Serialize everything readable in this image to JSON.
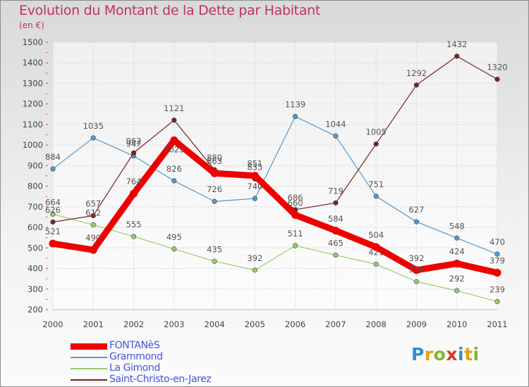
{
  "header": {
    "title": "Evolution du Montant de la Dette par Habitant",
    "subtitle": "(en €)"
  },
  "logo": {
    "letters": [
      {
        "ch": "P",
        "color": "#2c8fd6"
      },
      {
        "ch": "r",
        "color": "#e8a010"
      },
      {
        "ch": "o",
        "color": "#7cb82f"
      },
      {
        "ch": "x",
        "color": "#d93a2b"
      },
      {
        "ch": "i",
        "color": "#2c8fd6"
      },
      {
        "ch": "t",
        "color": "#e8a010"
      },
      {
        "ch": "i",
        "color": "#7cb82f"
      }
    ]
  },
  "chart_data": {
    "type": "line",
    "x": [
      "2000",
      "2001",
      "2002",
      "2003",
      "2004",
      "2005",
      "2006",
      "2007",
      "2008",
      "2009",
      "2010",
      "2011"
    ],
    "ylim": [
      200,
      1500
    ],
    "yticks": [
      200,
      300,
      400,
      500,
      600,
      700,
      800,
      900,
      1000,
      1100,
      1200,
      1300,
      1400,
      1500
    ],
    "grid": true,
    "legend_position": "bottom-left",
    "series": [
      {
        "name": "FONTANèS",
        "color": "#ee0000",
        "values": [
          521,
          490,
          764,
          1023,
          863,
          851,
          660,
          584,
          504,
          392,
          424,
          379
        ]
      },
      {
        "name": "Grammond",
        "color": "#5599cc",
        "values": [
          884,
          1035,
          947,
          826,
          726,
          740,
          1139,
          1044,
          751,
          627,
          548,
          470
        ]
      },
      {
        "name": "La Gimond",
        "color": "#99cc66",
        "values": [
          664,
          612,
          555,
          495,
          435,
          392,
          511,
          465,
          421,
          336,
          292,
          239
        ]
      },
      {
        "name": "Saint-Christo-en-Jarez",
        "color": "#772222",
        "values": [
          626,
          657,
          962,
          1121,
          880,
          835,
          686,
          719,
          1005,
          1292,
          1432,
          1320
        ]
      }
    ],
    "labels": [
      [
        {
          "t": "521",
          "dx": 0,
          "dy": -13
        },
        {
          "t": "490",
          "dx": 0,
          "dy": -13
        },
        {
          "t": "764",
          "dx": 0,
          "dy": -13
        },
        {
          "t": "1023",
          "dx": 0,
          "dy": 17
        },
        {
          "t": "863",
          "dx": 0,
          "dy": -13
        },
        {
          "t": "851",
          "dx": 0,
          "dy": -13
        },
        {
          "t": "660",
          "dx": 0,
          "dy": -13
        },
        {
          "t": "584",
          "dx": 0,
          "dy": -13
        },
        {
          "t": "504",
          "dx": 0,
          "dy": -13
        },
        {
          "t": "392",
          "dx": 0,
          "dy": -13
        },
        {
          "t": "424",
          "dx": 0,
          "dy": -13
        },
        {
          "t": "379",
          "dx": 0,
          "dy": -13
        }
      ],
      [
        {
          "t": "884",
          "dx": 0,
          "dy": -13
        },
        {
          "t": "1035",
          "dx": 0,
          "dy": -13
        },
        {
          "t": "947",
          "dx": 0,
          "dy": -13
        },
        {
          "t": "826",
          "dx": 0,
          "dy": -13
        },
        {
          "t": "726",
          "dx": 0,
          "dy": -13
        },
        {
          "t": "740",
          "dx": 0,
          "dy": -13
        },
        {
          "t": "1139",
          "dx": 0,
          "dy": -13
        },
        {
          "t": "1044",
          "dx": 0,
          "dy": -13
        },
        {
          "t": "751",
          "dx": 0,
          "dy": -13
        },
        {
          "t": "627",
          "dx": 0,
          "dy": -13
        },
        {
          "t": "548",
          "dx": 0,
          "dy": -13
        },
        {
          "t": "470",
          "dx": 0,
          "dy": -13
        }
      ],
      [
        {
          "t": "664",
          "dx": 0,
          "dy": -13
        },
        {
          "t": "612",
          "dx": 0,
          "dy": -13
        },
        {
          "t": "555",
          "dx": 0,
          "dy": -13
        },
        {
          "t": "495",
          "dx": 0,
          "dy": -13
        },
        {
          "t": "435",
          "dx": 0,
          "dy": -13
        },
        {
          "t": "392",
          "dx": 0,
          "dy": -13
        },
        {
          "t": "511",
          "dx": 0,
          "dy": -13
        },
        {
          "t": "465",
          "dx": 0,
          "dy": -13
        },
        {
          "t": "421",
          "dx": 0,
          "dy": -13
        },
        {
          "t": "336",
          "dx": 0,
          "dy": -13
        },
        {
          "t": "292",
          "dx": 0,
          "dy": -13
        },
        {
          "t": "239",
          "dx": 0,
          "dy": -13
        }
      ],
      [
        {
          "t": "626",
          "dx": 0,
          "dy": -13
        },
        {
          "t": "657",
          "dx": 0,
          "dy": -13
        },
        {
          "t": "962",
          "dx": 0,
          "dy": -13
        },
        {
          "t": "1121",
          "dx": 0,
          "dy": -13
        },
        {
          "t": "880",
          "dx": 0,
          "dy": -13
        },
        {
          "t": "835",
          "dx": 0,
          "dy": -13
        },
        {
          "t": "686",
          "dx": 0,
          "dy": -13
        },
        {
          "t": "719",
          "dx": 0,
          "dy": -13
        },
        {
          "t": "1005",
          "dx": 0,
          "dy": -13
        },
        {
          "t": "1292",
          "dx": 0,
          "dy": -13
        },
        {
          "t": "1432",
          "dx": 0,
          "dy": -13
        },
        {
          "t": "1320",
          "dx": 0,
          "dy": -13
        }
      ]
    ]
  }
}
